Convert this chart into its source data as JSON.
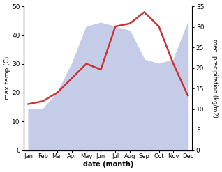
{
  "months": [
    "Jan",
    "Feb",
    "Mar",
    "Apr",
    "May",
    "Jun",
    "Jul",
    "Aug",
    "Sep",
    "Oct",
    "Nov",
    "Dec"
  ],
  "temperature": [
    16,
    17,
    20,
    25,
    30,
    28,
    43,
    44,
    48,
    43,
    30,
    19
  ],
  "precipitation": [
    10,
    10,
    14,
    21,
    30,
    31,
    30,
    29,
    22,
    21,
    22,
    31
  ],
  "temp_ylim": [
    0,
    50
  ],
  "precip_ylim": [
    0,
    35
  ],
  "temp_color": "#cc3333",
  "precip_fill_color": "#c5cce8",
  "xlabel": "date (month)",
  "ylabel_left": "max temp (C)",
  "ylabel_right": "med. precipitation (kg/m2)",
  "background_color": "#ffffff",
  "line_width": 1.8
}
